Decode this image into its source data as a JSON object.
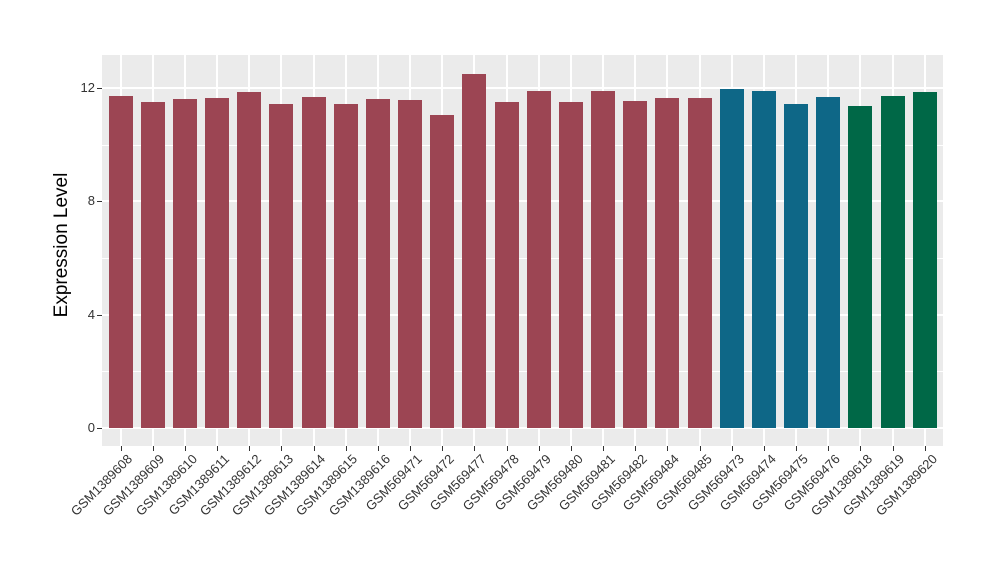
{
  "chart_data": {
    "type": "bar",
    "title": "",
    "xlabel": "",
    "ylabel": "Expression Level",
    "ylim": [
      0,
      13.2
    ],
    "yticks": [
      0,
      4,
      8,
      12
    ],
    "yticks_minor": [
      2,
      6,
      10
    ],
    "grid": "on",
    "legend": "none",
    "panel_background": "#EBEBEB",
    "gridline_color": "#FFFFFF",
    "tick_label_color": "#333333",
    "palette": {
      "maroon": "#9C4553",
      "teal": "#0E6787",
      "green": "#006847"
    },
    "categories": [
      "GSM1389608",
      "GSM1389609",
      "GSM1389610",
      "GSM1389611",
      "GSM1389612",
      "GSM1389613",
      "GSM1389614",
      "GSM1389615",
      "GSM1389616",
      "GSM569471",
      "GSM569472",
      "GSM569477",
      "GSM569478",
      "GSM569479",
      "GSM569480",
      "GSM569481",
      "GSM569482",
      "GSM569484",
      "GSM569485",
      "GSM569473",
      "GSM569474",
      "GSM569475",
      "GSM569476",
      "GSM1389618",
      "GSM1389619",
      "GSM1389620"
    ],
    "values": [
      11.72,
      11.51,
      11.61,
      11.64,
      11.85,
      11.45,
      11.7,
      11.43,
      11.62,
      11.59,
      11.05,
      12.5,
      11.49,
      11.9,
      11.49,
      11.9,
      11.56,
      11.66,
      11.64,
      11.96,
      11.88,
      11.43,
      11.69,
      11.36,
      11.72,
      11.87
    ],
    "bar_color_groups": [
      "maroon",
      "maroon",
      "maroon",
      "maroon",
      "maroon",
      "maroon",
      "maroon",
      "maroon",
      "maroon",
      "maroon",
      "maroon",
      "maroon",
      "maroon",
      "maroon",
      "maroon",
      "maroon",
      "maroon",
      "maroon",
      "maroon",
      "teal",
      "teal",
      "teal",
      "teal",
      "green",
      "green",
      "green"
    ]
  }
}
